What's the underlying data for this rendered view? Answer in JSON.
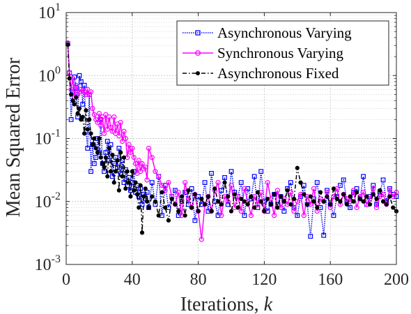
{
  "chart_data": {
    "type": "line",
    "xlabel": "Iterations, ",
    "xlabel_var": "k",
    "ylabel": "Mean Squared Error",
    "xlim": [
      0,
      200
    ],
    "ylim": [
      0.001,
      10
    ],
    "yscale": "log",
    "grid": true,
    "legend_position": "top-right",
    "xticks": [
      0,
      40,
      80,
      120,
      160,
      200
    ],
    "xtick_labels": [
      "0",
      "40",
      "80",
      "120",
      "160",
      "200"
    ],
    "yticks": [
      {
        "value": 10,
        "base": "10",
        "exp": "1"
      },
      {
        "value": 1,
        "base": "10",
        "exp": "0"
      },
      {
        "value": 0.1,
        "base": "10",
        "exp": "-1"
      },
      {
        "value": 0.01,
        "base": "10",
        "exp": "-2"
      },
      {
        "value": 0.001,
        "base": "10",
        "exp": "-3"
      }
    ],
    "series": [
      {
        "name": "Asynchronous Varying",
        "color": "#0000ff",
        "line_style": "dotted",
        "marker": "square",
        "x": [
          1,
          2,
          3,
          4,
          5,
          6,
          7,
          8,
          9,
          10,
          11,
          12,
          13,
          14,
          15,
          16,
          17,
          18,
          19,
          20,
          21,
          22,
          23,
          24,
          25,
          26,
          27,
          28,
          29,
          30,
          31,
          32,
          33,
          34,
          35,
          36,
          37,
          38,
          39,
          40,
          41,
          42,
          43,
          44,
          45,
          46,
          47,
          48,
          49,
          50,
          52,
          54,
          56,
          58,
          60,
          62,
          64,
          66,
          68,
          70,
          72,
          74,
          76,
          78,
          80,
          82,
          84,
          86,
          88,
          90,
          92,
          94,
          96,
          98,
          100,
          102,
          104,
          106,
          108,
          110,
          112,
          114,
          116,
          118,
          120,
          122,
          124,
          126,
          128,
          130,
          132,
          134,
          136,
          138,
          140,
          142,
          144,
          146,
          148,
          150,
          152,
          154,
          156,
          158,
          160,
          162,
          164,
          166,
          168,
          170,
          172,
          174,
          176,
          178,
          180,
          182,
          184,
          186,
          188,
          190,
          192,
          194,
          196,
          198,
          200
        ],
        "y": [
          3.2,
          1.1,
          0.2,
          0.55,
          0.95,
          0.65,
          0.22,
          1.0,
          0.8,
          0.35,
          0.7,
          0.13,
          0.07,
          0.5,
          0.03,
          0.08,
          0.04,
          0.05,
          0.1,
          0.06,
          0.2,
          0.04,
          0.03,
          0.06,
          0.09,
          0.045,
          0.08,
          0.025,
          0.04,
          0.05,
          0.035,
          0.07,
          0.028,
          0.045,
          0.02,
          0.032,
          0.018,
          0.024,
          0.015,
          0.02,
          0.03,
          0.014,
          0.018,
          0.012,
          0.016,
          0.009,
          0.013,
          0.011,
          0.014,
          0.008,
          0.02,
          0.009,
          0.025,
          0.006,
          0.018,
          0.008,
          0.012,
          0.015,
          0.006,
          0.01,
          0.014,
          0.009,
          0.016,
          0.005,
          0.012,
          0.009,
          0.02,
          0.007,
          0.028,
          0.01,
          0.006,
          0.015,
          0.024,
          0.009,
          0.03,
          0.014,
          0.012,
          0.02,
          0.006,
          0.016,
          0.011,
          0.025,
          0.008,
          0.03,
          0.01,
          0.007,
          0.009,
          0.013,
          0.009,
          0.012,
          0.007,
          0.016,
          0.02,
          0.008,
          0.006,
          0.012,
          0.018,
          0.009,
          0.0028,
          0.011,
          0.02,
          0.008,
          0.0029,
          0.015,
          0.009,
          0.006,
          0.012,
          0.018,
          0.022,
          0.01,
          0.008,
          0.014,
          0.016,
          0.011,
          0.025,
          0.009,
          0.012,
          0.018,
          0.009,
          0.014,
          0.022,
          0.01,
          0.016,
          0.013,
          0.012
        ]
      },
      {
        "name": "Synchronous Varying",
        "color": "#ff00ff",
        "line_style": "solid",
        "marker": "circle",
        "x": [
          1,
          2,
          3,
          4,
          5,
          6,
          7,
          8,
          9,
          10,
          11,
          12,
          13,
          14,
          15,
          16,
          17,
          18,
          19,
          20,
          21,
          22,
          23,
          24,
          25,
          26,
          27,
          28,
          29,
          30,
          31,
          32,
          33,
          34,
          35,
          36,
          37,
          38,
          39,
          40,
          41,
          42,
          43,
          44,
          45,
          46,
          47,
          48,
          49,
          50,
          52,
          54,
          56,
          58,
          60,
          62,
          64,
          66,
          68,
          70,
          72,
          74,
          76,
          78,
          80,
          82,
          84,
          86,
          88,
          90,
          92,
          94,
          96,
          98,
          100,
          102,
          104,
          106,
          108,
          110,
          112,
          114,
          116,
          118,
          120,
          122,
          124,
          126,
          128,
          130,
          132,
          134,
          136,
          138,
          140,
          142,
          144,
          146,
          148,
          150,
          152,
          154,
          156,
          158,
          160,
          162,
          164,
          166,
          168,
          170,
          172,
          174,
          176,
          178,
          180,
          182,
          184,
          186,
          188,
          190,
          192,
          194,
          196,
          198,
          200
        ],
        "y": [
          3.3,
          1.1,
          0.6,
          0.9,
          0.45,
          0.7,
          0.5,
          0.55,
          0.6,
          0.58,
          0.55,
          0.5,
          0.6,
          0.5,
          0.55,
          0.3,
          0.24,
          0.2,
          0.18,
          0.25,
          0.16,
          0.22,
          0.12,
          0.24,
          0.14,
          0.22,
          0.15,
          0.13,
          0.22,
          0.12,
          0.17,
          0.11,
          0.18,
          0.09,
          0.13,
          0.1,
          0.05,
          0.08,
          0.06,
          0.07,
          0.05,
          0.04,
          0.028,
          0.045,
          0.03,
          0.04,
          0.033,
          0.035,
          0.022,
          0.07,
          0.05,
          0.03,
          0.025,
          0.018,
          0.015,
          0.02,
          0.012,
          0.009,
          0.014,
          0.006,
          0.02,
          0.011,
          0.008,
          0.013,
          0.007,
          0.0025,
          0.009,
          0.012,
          0.007,
          0.015,
          0.02,
          0.006,
          0.012,
          0.01,
          0.018,
          0.008,
          0.012,
          0.007,
          0.016,
          0.01,
          0.006,
          0.012,
          0.009,
          0.014,
          0.007,
          0.02,
          0.011,
          0.006,
          0.015,
          0.008,
          0.011,
          0.009,
          0.014,
          0.007,
          0.01,
          0.013,
          0.006,
          0.012,
          0.009,
          0.016,
          0.007,
          0.011,
          0.01,
          0.014,
          0.008,
          0.012,
          0.016,
          0.009,
          0.013,
          0.011,
          0.01,
          0.015,
          0.008,
          0.012,
          0.014,
          0.009,
          0.011,
          0.016,
          0.008,
          0.012,
          0.013,
          0.009,
          0.015,
          0.012,
          0.014
        ]
      },
      {
        "name": "Asynchronous Fixed",
        "color": "#000000",
        "line_style": "dash-dot",
        "marker": "filled-circle",
        "x": [
          1,
          2,
          3,
          4,
          5,
          6,
          7,
          8,
          9,
          10,
          11,
          12,
          13,
          14,
          15,
          16,
          17,
          18,
          19,
          20,
          21,
          22,
          23,
          24,
          25,
          26,
          27,
          28,
          29,
          30,
          31,
          32,
          33,
          34,
          35,
          36,
          37,
          38,
          39,
          40,
          41,
          42,
          43,
          44,
          45,
          46,
          47,
          48,
          49,
          50,
          52,
          54,
          56,
          58,
          60,
          62,
          64,
          66,
          68,
          70,
          72,
          74,
          76,
          78,
          80,
          82,
          84,
          86,
          88,
          90,
          92,
          94,
          96,
          98,
          100,
          102,
          104,
          106,
          108,
          110,
          112,
          114,
          116,
          118,
          120,
          122,
          124,
          126,
          128,
          130,
          132,
          134,
          136,
          138,
          140,
          142,
          144,
          146,
          148,
          150,
          152,
          154,
          156,
          158,
          160,
          162,
          164,
          166,
          168,
          170,
          172,
          174,
          176,
          178,
          180,
          182,
          184,
          186,
          188,
          190,
          192,
          194,
          196,
          198,
          200
        ],
        "y": [
          3.1,
          0.9,
          0.5,
          0.4,
          0.35,
          0.45,
          0.25,
          0.3,
          0.2,
          0.22,
          0.12,
          0.28,
          0.14,
          0.2,
          0.12,
          0.08,
          0.1,
          0.07,
          0.06,
          0.1,
          0.05,
          0.04,
          0.035,
          0.05,
          0.025,
          0.07,
          0.03,
          0.055,
          0.02,
          0.03,
          0.045,
          0.015,
          0.06,
          0.025,
          0.05,
          0.016,
          0.03,
          0.02,
          0.012,
          0.03,
          0.015,
          0.02,
          0.013,
          0.008,
          0.018,
          0.0032,
          0.012,
          0.016,
          0.01,
          0.008,
          0.012,
          0.01,
          0.006,
          0.014,
          0.008,
          0.005,
          0.011,
          0.009,
          0.007,
          0.012,
          0.006,
          0.015,
          0.008,
          0.013,
          0.007,
          0.011,
          0.009,
          0.012,
          0.007,
          0.016,
          0.01,
          0.009,
          0.02,
          0.012,
          0.007,
          0.013,
          0.008,
          0.011,
          0.01,
          0.009,
          0.012,
          0.008,
          0.014,
          0.01,
          0.007,
          0.011,
          0.009,
          0.013,
          0.008,
          0.012,
          0.01,
          0.015,
          0.009,
          0.011,
          0.034,
          0.02,
          0.013,
          0.009,
          0.012,
          0.01,
          0.008,
          0.014,
          0.01,
          0.012,
          0.009,
          0.016,
          0.011,
          0.01,
          0.013,
          0.009,
          0.012,
          0.01,
          0.014,
          0.011,
          0.01,
          0.012,
          0.009,
          0.013,
          0.011,
          0.015,
          0.01,
          0.009,
          0.012,
          0.008,
          0.007
        ]
      }
    ]
  }
}
